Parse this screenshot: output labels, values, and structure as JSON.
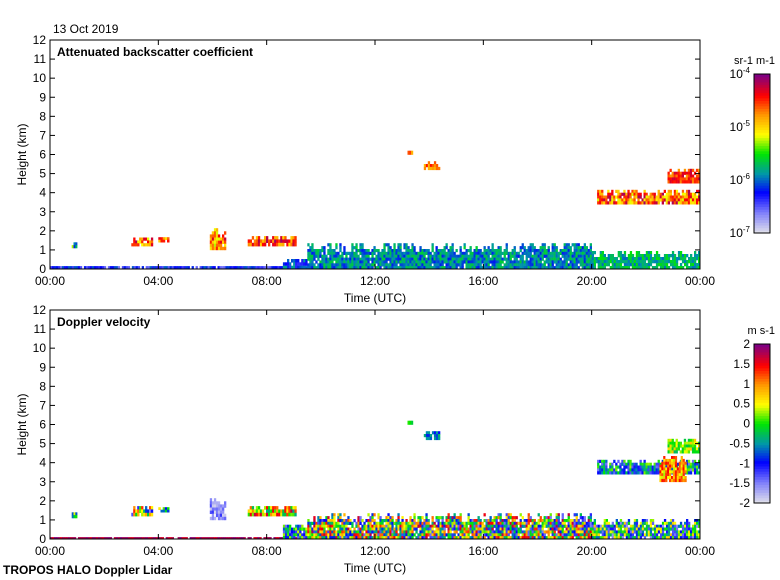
{
  "date_label": "13 Oct 2019",
  "footer": "TROPOS HALO Doppler Lidar",
  "chart_data": [
    {
      "type": "heatmap",
      "title": "Attenuated backscatter coefficient",
      "xlabel": "Time (UTC)",
      "ylabel": "Height (km)",
      "xlim_hours": [
        0,
        24
      ],
      "ylim": [
        0,
        12
      ],
      "x_ticks": [
        "00:00",
        "04:00",
        "08:00",
        "12:00",
        "16:00",
        "20:00",
        "00:00"
      ],
      "y_ticks": [
        "0",
        "1",
        "2",
        "3",
        "4",
        "5",
        "6",
        "7",
        "8",
        "9",
        "10",
        "11",
        "12"
      ],
      "colorbar": {
        "label": "sr-1 m-1",
        "scale": "log",
        "range": [
          -7,
          -4
        ],
        "ticks": [
          "10-7",
          "10-6",
          "10-5",
          "10-4"
        ]
      },
      "features": [
        {
          "t": [
            0.0,
            9.5
          ],
          "h": [
            0.0,
            0.15
          ],
          "v": [
            -6.6,
            -6.0
          ]
        },
        {
          "t": [
            0.8,
            1.0
          ],
          "h": [
            1.1,
            1.4
          ],
          "v": [
            -6.2,
            -5.2
          ]
        },
        {
          "t": [
            3.0,
            3.8
          ],
          "h": [
            1.2,
            1.8
          ],
          "v": [
            -5.2,
            -4.1
          ]
        },
        {
          "t": [
            4.0,
            4.4
          ],
          "h": [
            1.4,
            1.8
          ],
          "v": [
            -5.2,
            -4.3
          ]
        },
        {
          "t": [
            5.9,
            6.5
          ],
          "h": [
            1.0,
            2.3
          ],
          "v": [
            -5.3,
            -4.2
          ]
        },
        {
          "t": [
            7.3,
            9.1
          ],
          "h": [
            1.2,
            1.9
          ],
          "v": [
            -5.0,
            -4.1
          ]
        },
        {
          "t": [
            8.6,
            9.5
          ],
          "h": [
            0.0,
            0.7
          ],
          "v": [
            -6.4,
            -5.8
          ]
        },
        {
          "t": [
            9.5,
            20.0
          ],
          "h": [
            0.0,
            1.5
          ],
          "v": [
            -6.2,
            -5.6
          ]
        },
        {
          "t": [
            20.0,
            24.0
          ],
          "h": [
            0.0,
            1.1
          ],
          "v": [
            -6.0,
            -5.5
          ]
        },
        {
          "t": [
            13.2,
            13.4
          ],
          "h": [
            6.0,
            6.2
          ],
          "v": [
            -4.9,
            -4.5
          ]
        },
        {
          "t": [
            13.8,
            14.4
          ],
          "h": [
            5.2,
            5.8
          ],
          "v": [
            -4.9,
            -4.4
          ]
        },
        {
          "t": [
            20.2,
            24.0
          ],
          "h": [
            3.4,
            4.3
          ],
          "v": [
            -5.2,
            -4.1
          ]
        },
        {
          "t": [
            22.8,
            24.0
          ],
          "h": [
            4.5,
            5.4
          ],
          "v": [
            -4.8,
            -4.2
          ]
        }
      ]
    },
    {
      "type": "heatmap",
      "title": "Doppler velocity",
      "xlabel": "Time (UTC)",
      "ylabel": "Height (km)",
      "xlim_hours": [
        0,
        24
      ],
      "ylim": [
        0,
        12
      ],
      "x_ticks": [
        "00:00",
        "04:00",
        "08:00",
        "12:00",
        "16:00",
        "20:00",
        "00:00"
      ],
      "y_ticks": [
        "0",
        "1",
        "2",
        "3",
        "4",
        "5",
        "6",
        "7",
        "8",
        "9",
        "10",
        "11",
        "12"
      ],
      "colorbar": {
        "label": "m s-1",
        "scale": "linear",
        "range": [
          -2,
          2
        ],
        "ticks": [
          "-2",
          "-1.5",
          "-1",
          "-0.5",
          "0",
          "0.5",
          "1",
          "1.5",
          "2"
        ]
      },
      "features": [
        {
          "t": [
            0.0,
            9.5
          ],
          "h": [
            0.0,
            0.1
          ],
          "v": [
            1.6,
            2.0
          ]
        },
        {
          "t": [
            0.8,
            1.0
          ],
          "h": [
            1.1,
            1.4
          ],
          "v": [
            -1.0,
            0.5
          ]
        },
        {
          "t": [
            3.0,
            3.8
          ],
          "h": [
            1.2,
            1.9
          ],
          "v": [
            -1.5,
            1.5
          ]
        },
        {
          "t": [
            4.0,
            4.4
          ],
          "h": [
            1.4,
            1.8
          ],
          "v": [
            -1.0,
            1.0
          ]
        },
        {
          "t": [
            5.9,
            6.5
          ],
          "h": [
            1.0,
            2.3
          ],
          "v": [
            -2.0,
            -1.2
          ]
        },
        {
          "t": [
            7.3,
            9.1
          ],
          "h": [
            1.2,
            1.9
          ],
          "v": [
            -0.5,
            1.8
          ]
        },
        {
          "t": [
            8.6,
            9.5
          ],
          "h": [
            0.0,
            0.9
          ],
          "v": [
            -1.5,
            0.5
          ]
        },
        {
          "t": [
            9.5,
            20.0
          ],
          "h": [
            0.0,
            1.5
          ],
          "v": [
            -1.5,
            1.8
          ]
        },
        {
          "t": [
            20.0,
            24.0
          ],
          "h": [
            0.0,
            1.2
          ],
          "v": [
            -1.6,
            0.8
          ]
        },
        {
          "t": [
            13.2,
            13.4
          ],
          "h": [
            6.0,
            6.2
          ],
          "v": [
            -0.3,
            0.3
          ]
        },
        {
          "t": [
            13.8,
            14.4
          ],
          "h": [
            5.2,
            5.8
          ],
          "v": [
            -1.0,
            -0.3
          ]
        },
        {
          "t": [
            20.2,
            24.0
          ],
          "h": [
            3.4,
            4.3
          ],
          "v": [
            -1.5,
            0.3
          ]
        },
        {
          "t": [
            22.5,
            23.5
          ],
          "h": [
            3.0,
            4.5
          ],
          "v": [
            0.3,
            1.5
          ]
        },
        {
          "t": [
            22.8,
            24.0
          ],
          "h": [
            4.5,
            5.4
          ],
          "v": [
            -0.3,
            0.8
          ]
        }
      ]
    }
  ]
}
